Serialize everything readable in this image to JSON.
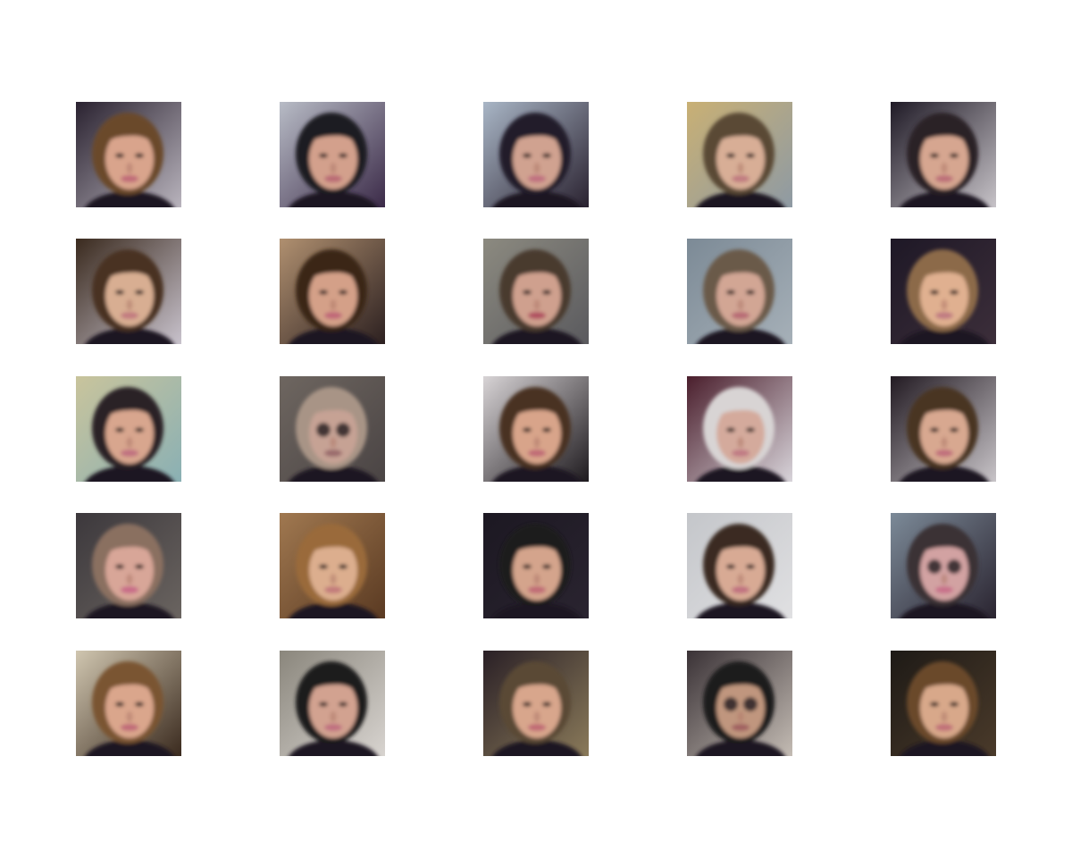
{
  "figure": {
    "grid": {
      "rows": 5,
      "cols": 5
    },
    "tiles": [
      {
        "r": 0,
        "c": 0,
        "bg": "#2a2230",
        "bg2": "#b9b4bd",
        "hair": "#6b4a2c",
        "skin": "#d9a48c",
        "lip": "#c06a78",
        "glasses": false
      },
      {
        "r": 0,
        "c": 1,
        "bg": "#b8bcc6",
        "bg2": "#3b2a48",
        "hair": "#1e1a22",
        "skin": "#d3a08c",
        "lip": "#b96a74",
        "glasses": false
      },
      {
        "r": 0,
        "c": 2,
        "bg": "#a9b6c6",
        "bg2": "#2a2230",
        "hair": "#241c2c",
        "skin": "#d0a290",
        "lip": "#c07080",
        "glasses": false
      },
      {
        "r": 0,
        "c": 3,
        "bg": "#c9b074",
        "bg2": "#8e9aa4",
        "hair": "#5a4a36",
        "skin": "#d8ae96",
        "lip": "#c07a80",
        "glasses": false
      },
      {
        "r": 0,
        "c": 4,
        "bg": "#1f1a26",
        "bg2": "#c7c3c8",
        "hair": "#2a2026",
        "skin": "#d6a690",
        "lip": "#bc6e78",
        "glasses": false
      },
      {
        "r": 1,
        "c": 0,
        "bg": "#3a2a1e",
        "bg2": "#c8c2cc",
        "hair": "#4a3220",
        "skin": "#d8ae92",
        "lip": "#c27a80",
        "glasses": false
      },
      {
        "r": 1,
        "c": 1,
        "bg": "#b09070",
        "bg2": "#2c2020",
        "hair": "#3a2618",
        "skin": "#d4a088",
        "lip": "#c06878",
        "glasses": false
      },
      {
        "r": 1,
        "c": 2,
        "bg": "#8c8a80",
        "bg2": "#5a5a5e",
        "hair": "#4a3a2e",
        "skin": "#cfa08e",
        "lip": "#b05060",
        "glasses": false
      },
      {
        "r": 1,
        "c": 3,
        "bg": "#7c8a96",
        "bg2": "#a6b0b8",
        "hair": "#6a5a48",
        "skin": "#d2a694",
        "lip": "#b86a74",
        "glasses": false
      },
      {
        "r": 1,
        "c": 4,
        "bg": "#1e1826",
        "bg2": "#3c2e3a",
        "hair": "#8c6a48",
        "skin": "#e0b090",
        "lip": "#c07a82",
        "glasses": false
      },
      {
        "r": 2,
        "c": 0,
        "bg": "#c9c49c",
        "bg2": "#8ab0b4",
        "hair": "#2a2226",
        "skin": "#d8a68e",
        "lip": "#c07080",
        "glasses": false
      },
      {
        "r": 2,
        "c": 1,
        "bg": "#6e6660",
        "bg2": "#4a4444",
        "hair": "#a89486",
        "skin": "#c6a294",
        "lip": "#9a6a6c",
        "glasses": true
      },
      {
        "r": 2,
        "c": 2,
        "bg": "#d8d4d6",
        "bg2": "#1e1a1e",
        "hair": "#4a3220",
        "skin": "#d8a48a",
        "lip": "#c06a76",
        "glasses": false
      },
      {
        "r": 2,
        "c": 3,
        "bg": "#4a1e2c",
        "bg2": "#d8d4da",
        "hair": "#d8d4d4",
        "skin": "#d4aa9c",
        "lip": "#c07a84",
        "glasses": false
      },
      {
        "r": 2,
        "c": 4,
        "bg": "#221a22",
        "bg2": "#c8c4c8",
        "hair": "#4a3422",
        "skin": "#d8a890",
        "lip": "#c06e7c",
        "glasses": false
      },
      {
        "r": 3,
        "c": 0,
        "bg": "#3c383c",
        "bg2": "#6a6460",
        "hair": "#8a7060",
        "skin": "#d8a698",
        "lip": "#c86a88",
        "glasses": false
      },
      {
        "r": 3,
        "c": 1,
        "bg": "#a07850",
        "bg2": "#5a3a22",
        "hair": "#9a6a3a",
        "skin": "#dcae8e",
        "lip": "#c27a7a",
        "glasses": false
      },
      {
        "r": 3,
        "c": 2,
        "bg": "#1c1822",
        "bg2": "#2a2430",
        "hair": "#1e1a1e",
        "skin": "#d4a48c",
        "lip": "#c06a76",
        "glasses": false
      },
      {
        "r": 3,
        "c": 3,
        "bg": "#c4c6ca",
        "bg2": "#e0e0e2",
        "hair": "#3a2c24",
        "skin": "#d8aa94",
        "lip": "#c07080",
        "glasses": false
      },
      {
        "r": 3,
        "c": 4,
        "bg": "#7c8a98",
        "bg2": "#2a2430",
        "hair": "#3a3034",
        "skin": "#d2a2a2",
        "lip": "#c8708a",
        "glasses": true
      },
      {
        "r": 4,
        "c": 0,
        "bg": "#d0c6b0",
        "bg2": "#3a2a1e",
        "hair": "#7a5430",
        "skin": "#daa68c",
        "lip": "#c06a78",
        "glasses": false
      },
      {
        "r": 4,
        "c": 1,
        "bg": "#8a867c",
        "bg2": "#d8d4d0",
        "hair": "#1e1a1c",
        "skin": "#d2a290",
        "lip": "#c07080",
        "glasses": false
      },
      {
        "r": 4,
        "c": 2,
        "bg": "#2a2026",
        "bg2": "#8a7a5a",
        "hair": "#5a4a34",
        "skin": "#d8a68c",
        "lip": "#c06a74",
        "glasses": false
      },
      {
        "r": 4,
        "c": 3,
        "bg": "#3a3236",
        "bg2": "#c4bcb4",
        "hair": "#1e1a1e",
        "skin": "#c0967e",
        "lip": "#a06060",
        "glasses": true
      },
      {
        "r": 4,
        "c": 4,
        "bg": "#1e1a16",
        "bg2": "#4a3a2a",
        "hair": "#6a4a2a",
        "skin": "#d8a88a",
        "lip": "#c07078",
        "glasses": false
      }
    ]
  }
}
